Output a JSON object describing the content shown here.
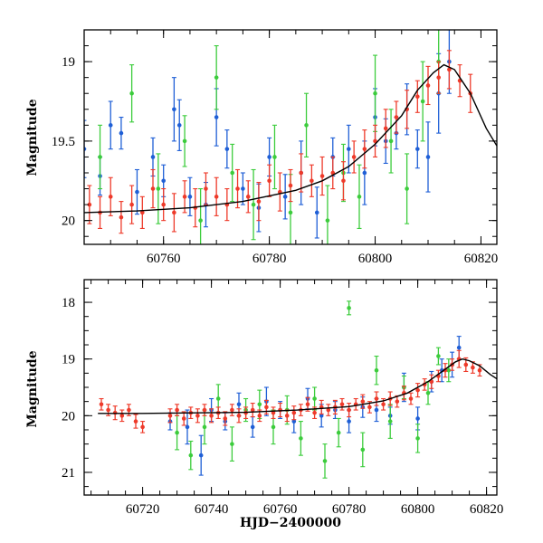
{
  "chart_data": [
    {
      "type": "scatter",
      "title": "",
      "xlabel": "",
      "ylabel": "Magnitude",
      "xlim": [
        60745,
        60823
      ],
      "ylim": [
        20.15,
        18.8
      ],
      "y_inverted": true,
      "xticks": [
        60760,
        60780,
        60800,
        60820
      ],
      "xtick_labels": [
        "60760",
        "60780",
        "60800",
        "60820"
      ],
      "yticks": [
        19,
        19.5,
        20
      ],
      "ytick_labels": [
        "19",
        "19.5",
        "20"
      ],
      "grid": false,
      "legend": "none",
      "model_curve": {
        "color": "#000000",
        "x": [
          60745,
          60755,
          60765,
          60775,
          60785,
          60790,
          60795,
          60800,
          60805,
          60808,
          60811,
          60813,
          60815,
          60818,
          60821,
          60823
        ],
        "y": [
          19.95,
          19.94,
          19.92,
          19.88,
          19.81,
          19.75,
          19.66,
          19.52,
          19.34,
          19.18,
          19.07,
          19.02,
          19.05,
          19.2,
          19.42,
          19.53
        ]
      },
      "series": [
        {
          "color": "#1f5fd6",
          "x": [
            60745,
            60748,
            60750,
            60752,
            60755,
            60758,
            60760,
            60762,
            60763,
            60765,
            60768,
            60770,
            60772,
            60775,
            60778,
            60780,
            60783,
            60786,
            60789,
            60792,
            60795,
            60798,
            60800,
            60802,
            60804,
            60806,
            60808,
            60810,
            60812,
            60814
          ],
          "y": [
            19.55,
            19.72,
            19.4,
            19.45,
            19.82,
            19.6,
            19.75,
            19.3,
            19.4,
            19.85,
            19.9,
            19.35,
            19.55,
            19.8,
            19.92,
            19.6,
            19.85,
            19.7,
            19.95,
            19.6,
            19.55,
            19.7,
            19.35,
            19.5,
            19.45,
            19.3,
            19.55,
            19.6,
            19.2,
            19.0
          ],
          "err": [
            0.18,
            0.12,
            0.15,
            0.1,
            0.14,
            0.12,
            0.1,
            0.2,
            0.16,
            0.12,
            0.14,
            0.18,
            0.12,
            0.1,
            0.15,
            0.12,
            0.14,
            0.2,
            0.16,
            0.12,
            0.15,
            0.2,
            0.18,
            0.14,
            0.1,
            0.16,
            0.12,
            0.22,
            0.25,
            0.2
          ]
        },
        {
          "color": "#3ccc3c",
          "x": [
            60748,
            60754,
            60759,
            60764,
            60767,
            60770,
            60773,
            60777,
            60781,
            60784,
            60787,
            60791,
            60794,
            60797,
            60800,
            60803,
            60806,
            60809,
            60812
          ],
          "y": [
            19.6,
            19.2,
            19.8,
            19.5,
            20.0,
            19.1,
            19.7,
            19.9,
            19.6,
            19.95,
            19.4,
            20.0,
            19.7,
            19.85,
            19.2,
            19.5,
            19.8,
            19.25,
            19.0
          ],
          "err": [
            0.2,
            0.18,
            0.22,
            0.16,
            0.2,
            0.2,
            0.18,
            0.22,
            0.2,
            0.24,
            0.2,
            0.22,
            0.18,
            0.2,
            0.24,
            0.2,
            0.22,
            0.25,
            0.2
          ]
        },
        {
          "color": "#ee3a2a",
          "x": [
            60746,
            60748,
            60750,
            60752,
            60754,
            60756,
            60758,
            60760,
            60762,
            60764,
            60766,
            60768,
            60770,
            60772,
            60774,
            60776,
            60778,
            60780,
            60782,
            60784,
            60786,
            60788,
            60790,
            60792,
            60794,
            60796,
            60798,
            60800,
            60802,
            60804,
            60806,
            60808,
            60810,
            60812,
            60814,
            60816,
            60818
          ],
          "y": [
            19.9,
            19.95,
            19.85,
            19.98,
            19.9,
            19.95,
            19.8,
            19.9,
            19.95,
            19.85,
            19.92,
            19.8,
            19.85,
            19.9,
            19.8,
            19.85,
            19.88,
            19.75,
            19.82,
            19.78,
            19.7,
            19.75,
            19.72,
            19.7,
            19.75,
            19.6,
            19.55,
            19.5,
            19.42,
            19.35,
            19.3,
            19.22,
            19.15,
            19.1,
            19.05,
            19.12,
            19.2
          ],
          "err": [
            0.12,
            0.1,
            0.12,
            0.1,
            0.12,
            0.1,
            0.12,
            0.1,
            0.12,
            0.1,
            0.12,
            0.1,
            0.12,
            0.1,
            0.12,
            0.1,
            0.12,
            0.1,
            0.12,
            0.1,
            0.12,
            0.1,
            0.12,
            0.1,
            0.12,
            0.1,
            0.12,
            0.1,
            0.12,
            0.1,
            0.12,
            0.1,
            0.12,
            0.1,
            0.12,
            0.1,
            0.12
          ]
        }
      ]
    },
    {
      "type": "scatter",
      "title": "",
      "xlabel": "HJD−2400000",
      "ylabel": "Magnitude",
      "xlim": [
        60703,
        60823
      ],
      "ylim": [
        21.4,
        17.6
      ],
      "y_inverted": true,
      "xticks": [
        60720,
        60740,
        60760,
        60780,
        60800,
        60820
      ],
      "xtick_labels": [
        "60720",
        "60740",
        "60760",
        "60780",
        "60800",
        "60820"
      ],
      "yticks": [
        18,
        19,
        20,
        21
      ],
      "ytick_labels": [
        "18",
        "19",
        "20",
        "21"
      ],
      "grid": false,
      "legend": "none",
      "model_curve": {
        "color": "#000000",
        "x": [
          60707,
          60720,
          60735,
          60750,
          60765,
          60780,
          60790,
          60797,
          60803,
          60808,
          60811,
          60813,
          60815,
          60818,
          60821,
          60823
        ],
        "y": [
          19.96,
          19.96,
          19.95,
          19.94,
          19.9,
          19.84,
          19.74,
          19.6,
          19.4,
          19.18,
          19.05,
          19.0,
          19.03,
          19.12,
          19.27,
          19.35
        ]
      },
      "series": [
        {
          "color": "#1f5fd6",
          "x": [
            60728,
            60733,
            60737,
            60740,
            60744,
            60748,
            60752,
            60756,
            60760,
            60764,
            60768,
            60772,
            60776,
            60780,
            60784,
            60788,
            60792,
            60796,
            60800,
            60804,
            60807,
            60810,
            60812
          ],
          "y": [
            20.1,
            20.2,
            20.7,
            19.9,
            20.1,
            19.8,
            20.2,
            19.75,
            19.9,
            20.1,
            19.7,
            20.0,
            19.9,
            20.1,
            19.85,
            19.9,
            20.0,
            19.5,
            20.05,
            19.4,
            19.2,
            19.1,
            18.8
          ],
          "err": [
            0.15,
            0.3,
            0.35,
            0.2,
            0.15,
            0.2,
            0.18,
            0.25,
            0.15,
            0.2,
            0.18,
            0.2,
            0.15,
            0.2,
            0.18,
            0.2,
            0.15,
            0.25,
            0.2,
            0.18,
            0.2,
            0.22,
            0.2
          ]
        },
        {
          "color": "#3ccc3c",
          "x": [
            60730,
            60734,
            60738,
            60742,
            60746,
            60750,
            60754,
            60758,
            60762,
            60766,
            60770,
            60773,
            60777,
            60780,
            60784,
            60788,
            60792,
            60796,
            60800,
            60803,
            60806,
            60809
          ],
          "y": [
            20.3,
            20.7,
            20.2,
            19.7,
            20.5,
            19.9,
            19.8,
            20.2,
            19.9,
            20.4,
            19.7,
            20.8,
            20.3,
            18.1,
            20.6,
            19.2,
            20.1,
            19.5,
            20.4,
            19.6,
            18.95,
            19.2
          ],
          "err": [
            0.3,
            0.25,
            0.3,
            0.25,
            0.3,
            0.2,
            0.25,
            0.3,
            0.25,
            0.3,
            0.2,
            0.3,
            0.25,
            0.12,
            0.3,
            0.25,
            0.3,
            0.2,
            0.25,
            0.2,
            0.15,
            0.2
          ]
        },
        {
          "color": "#ee3a2a",
          "x": [
            60708,
            60710,
            60712,
            60714,
            60716,
            60718,
            60720,
            60728,
            60730,
            60732,
            60734,
            60736,
            60738,
            60740,
            60742,
            60744,
            60746,
            60748,
            60750,
            60752,
            60754,
            60756,
            60758,
            60760,
            60762,
            60764,
            60766,
            60768,
            60770,
            60772,
            60774,
            60776,
            60778,
            60780,
            60782,
            60784,
            60786,
            60788,
            60790,
            60792,
            60794,
            60796,
            60798,
            60800,
            60802,
            60804,
            60806,
            60808,
            60810,
            60812,
            60814,
            60816,
            60818
          ],
          "y": [
            19.8,
            19.9,
            19.95,
            20.0,
            19.9,
            20.1,
            20.2,
            20.0,
            19.9,
            20.05,
            19.95,
            20.0,
            19.9,
            20.0,
            19.95,
            20.05,
            19.9,
            20.0,
            19.95,
            19.9,
            20.0,
            19.85,
            19.95,
            19.9,
            20.0,
            19.95,
            19.9,
            19.8,
            19.95,
            19.85,
            19.9,
            19.85,
            19.8,
            19.9,
            19.8,
            19.75,
            19.85,
            19.7,
            19.8,
            19.7,
            19.75,
            19.6,
            19.7,
            19.55,
            19.45,
            19.4,
            19.3,
            19.2,
            19.1,
            19.0,
            19.1,
            19.15,
            19.2
          ],
          "err": [
            0.1,
            0.1,
            0.12,
            0.1,
            0.1,
            0.12,
            0.1,
            0.12,
            0.1,
            0.12,
            0.1,
            0.12,
            0.1,
            0.12,
            0.1,
            0.12,
            0.1,
            0.12,
            0.1,
            0.12,
            0.1,
            0.12,
            0.1,
            0.12,
            0.1,
            0.12,
            0.1,
            0.12,
            0.1,
            0.12,
            0.1,
            0.12,
            0.1,
            0.12,
            0.1,
            0.12,
            0.1,
            0.12,
            0.1,
            0.12,
            0.1,
            0.12,
            0.1,
            0.12,
            0.1,
            0.12,
            0.1,
            0.12,
            0.1,
            0.15,
            0.12,
            0.1,
            0.1
          ]
        }
      ]
    }
  ]
}
